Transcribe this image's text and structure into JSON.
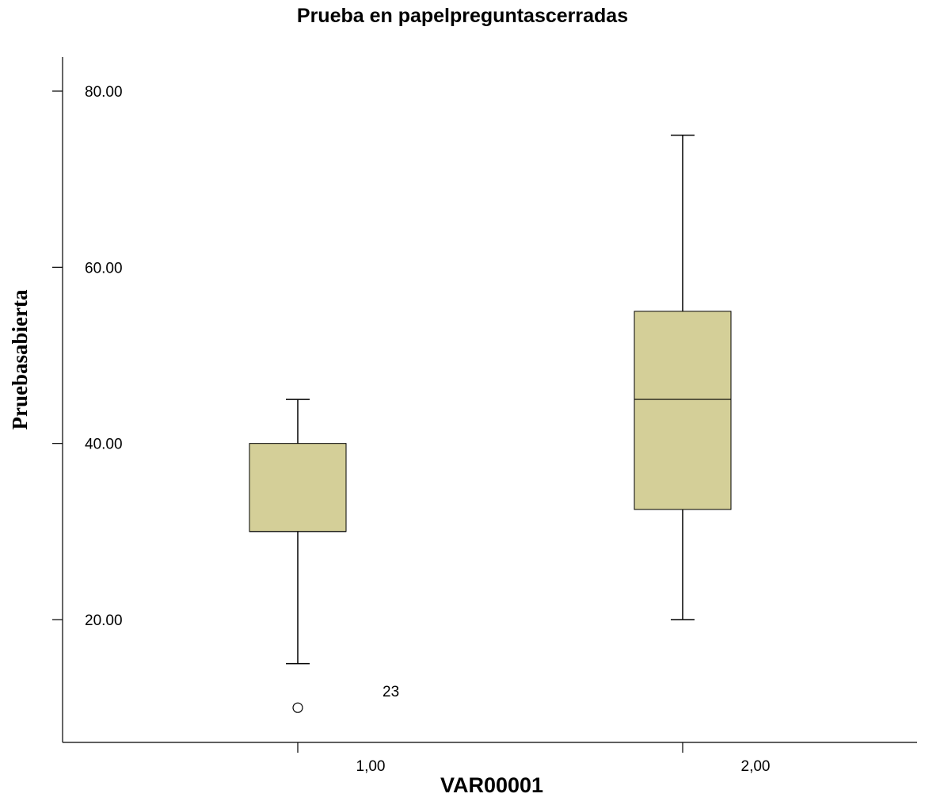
{
  "chart_data": {
    "type": "box",
    "title": "Prueba en papelpreguntascerradas",
    "xlabel": "VAR00001",
    "ylabel": "Pruebasabierta",
    "y_ticks": [
      20,
      40,
      60,
      80
    ],
    "y_tick_labels": [
      "20.00",
      "40.00",
      "60.00",
      "80.00"
    ],
    "categories": [
      "1,00",
      "2,00"
    ],
    "boxes": [
      {
        "category": "1,00",
        "whisker_low": 15,
        "q1": 30,
        "median": 30,
        "q3": 40,
        "whisker_high": 45,
        "outliers": [
          {
            "value": 10,
            "label": "23"
          }
        ]
      },
      {
        "category": "2,00",
        "whisker_low": 20,
        "q1": 32.5,
        "median": 45,
        "q3": 55,
        "whisker_high": 75,
        "outliers": []
      }
    ],
    "box_color": "#d4cf98",
    "grid": false
  }
}
